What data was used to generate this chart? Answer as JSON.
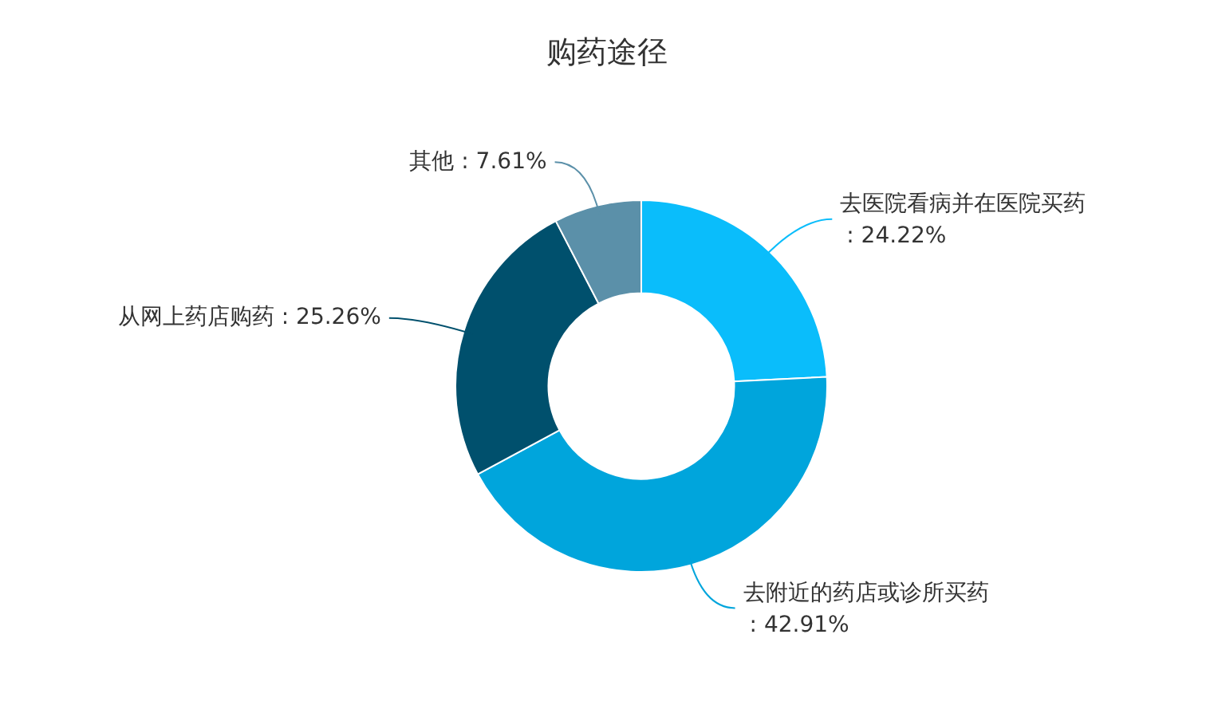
{
  "chart_data": {
    "type": "donut",
    "title": "购药途径",
    "categories": [
      "去医院看病并在医院买药",
      "去附近的药店或诊所买药",
      "从网上药店购药",
      "其他"
    ],
    "values": [
      24.22,
      42.91,
      25.26,
      7.61
    ],
    "value_labels": [
      ": 24.22%",
      ": 42.91%",
      ": 25.26%",
      ": 7.61%"
    ],
    "colors": [
      "#0abdfb",
      "#00a5dc",
      "#00506d",
      "#5b90a9"
    ],
    "legend": false
  }
}
